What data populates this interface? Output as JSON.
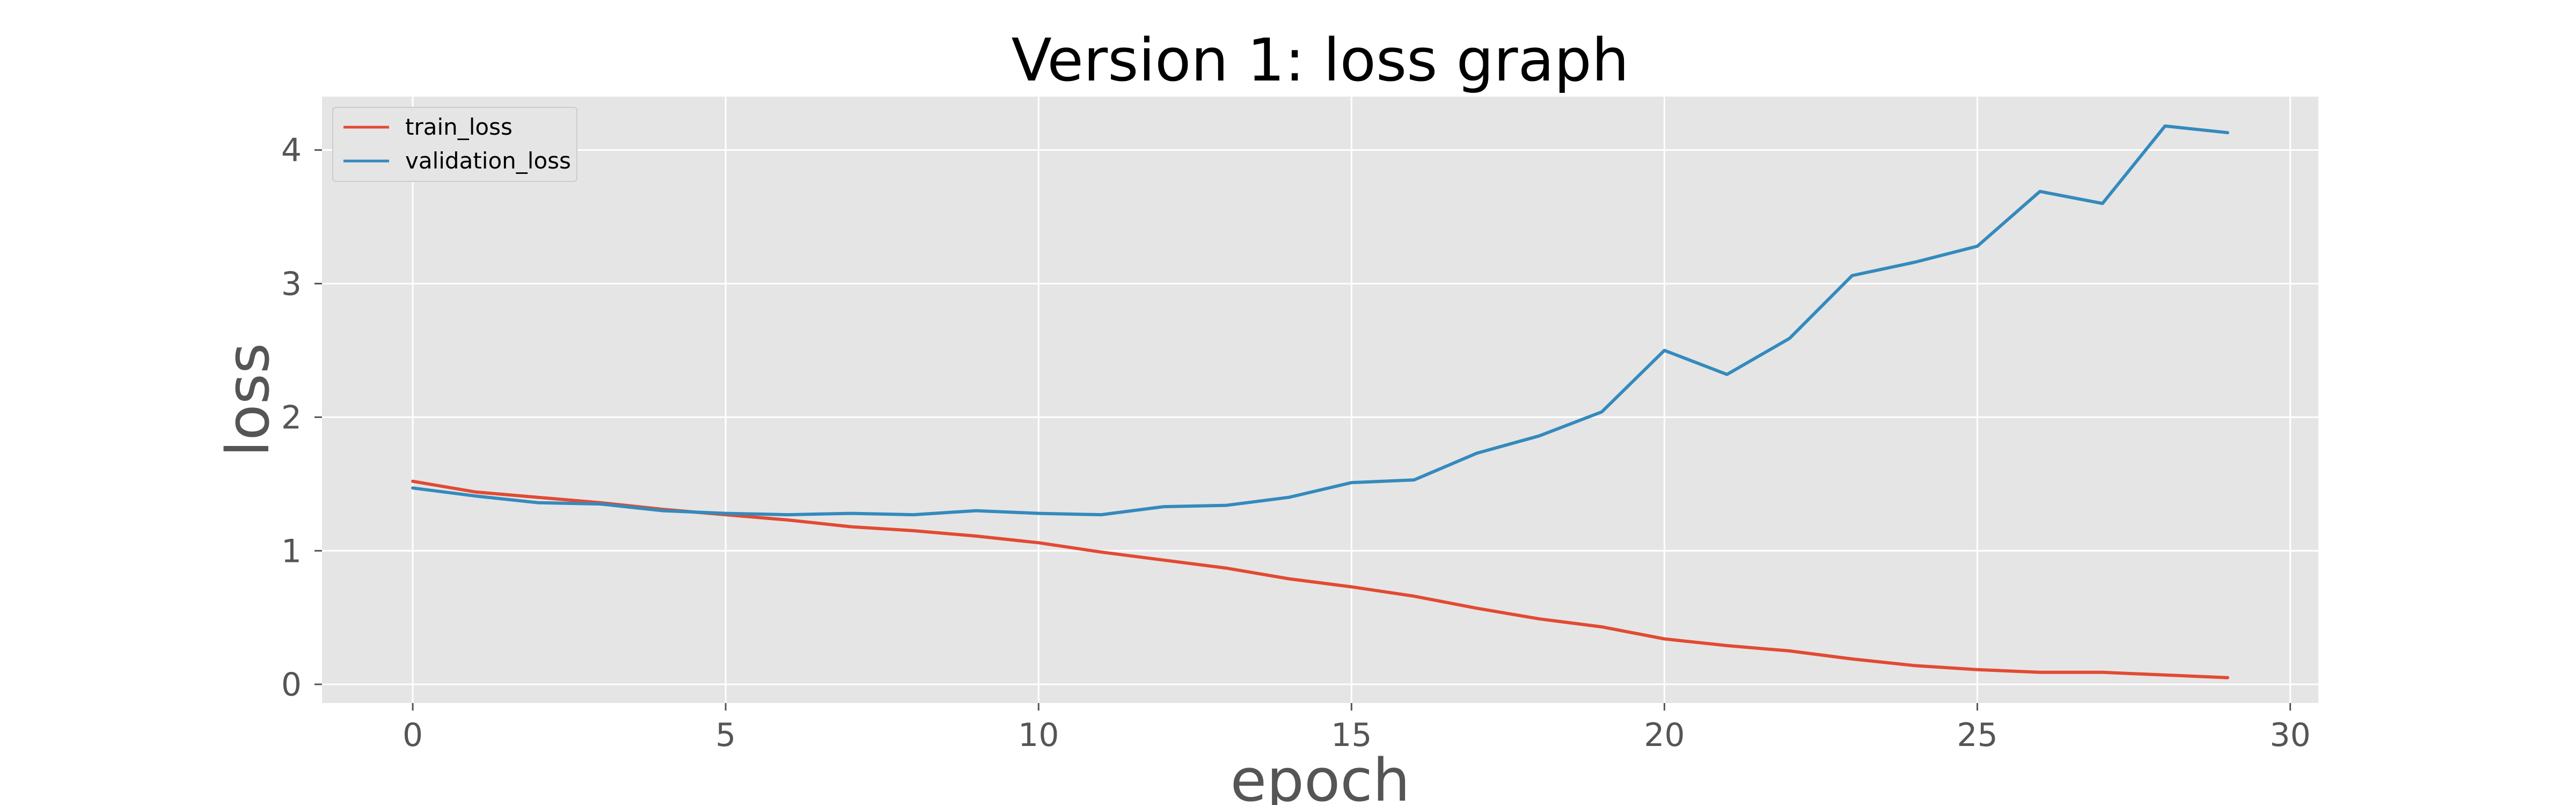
{
  "chart_data": {
    "type": "line",
    "title": "Version 1: loss graph",
    "xlabel": "epoch",
    "ylabel": "loss",
    "x": [
      0,
      1,
      2,
      3,
      4,
      5,
      6,
      7,
      8,
      9,
      10,
      11,
      12,
      13,
      14,
      15,
      16,
      17,
      18,
      19,
      20,
      21,
      22,
      23,
      24,
      25,
      26,
      27,
      28,
      29
    ],
    "xlim": [
      -1.45,
      30.45
    ],
    "ylim": [
      -0.14,
      4.4
    ],
    "xticks": [
      0,
      5,
      10,
      15,
      20,
      25,
      30
    ],
    "yticks": [
      0,
      1,
      2,
      3,
      4
    ],
    "xtick_labels": [
      "0",
      "5",
      "10",
      "15",
      "20",
      "25",
      "30"
    ],
    "ytick_labels": [
      "0",
      "1",
      "2",
      "3",
      "4"
    ],
    "grid": true,
    "legend_position": "upper-left",
    "series": [
      {
        "name": "train_loss",
        "color": "#E24A33",
        "values": [
          1.52,
          1.44,
          1.4,
          1.36,
          1.31,
          1.27,
          1.23,
          1.18,
          1.15,
          1.11,
          1.06,
          0.99,
          0.93,
          0.87,
          0.79,
          0.73,
          0.66,
          0.57,
          0.49,
          0.43,
          0.34,
          0.29,
          0.25,
          0.19,
          0.14,
          0.11,
          0.09,
          0.09,
          0.07,
          0.05
        ]
      },
      {
        "name": "validation_loss",
        "color": "#348ABD",
        "values": [
          1.47,
          1.41,
          1.36,
          1.35,
          1.3,
          1.28,
          1.27,
          1.28,
          1.27,
          1.3,
          1.28,
          1.27,
          1.33,
          1.34,
          1.4,
          1.51,
          1.53,
          1.73,
          1.86,
          2.04,
          2.5,
          2.32,
          2.59,
          3.06,
          3.16,
          3.28,
          3.69,
          3.6,
          4.18,
          4.13
        ]
      }
    ]
  }
}
